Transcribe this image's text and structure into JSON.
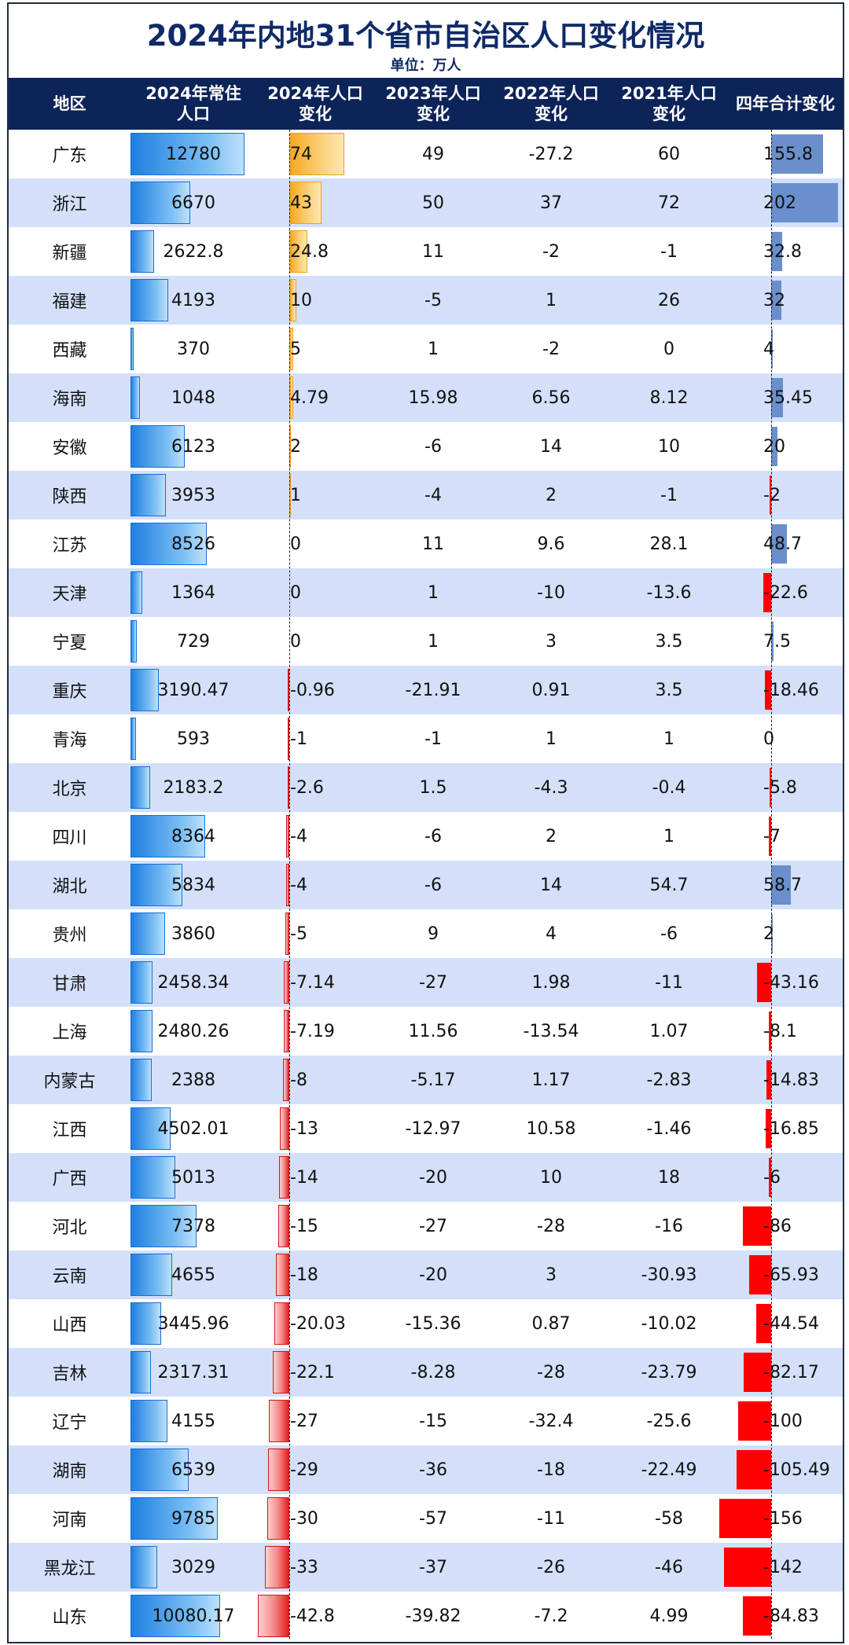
{
  "title": "2024年内地31个省市自治区人口变化情况",
  "unit": "单位：万人",
  "headers": [
    "地区",
    "2024年常住\n人口",
    "2024年人口\n变化",
    "2023年人口\n变化",
    "2022年人口\n变化",
    "2021年人口\n变化",
    "四年合计变化"
  ],
  "colors": {
    "header_bg": "#0d2459",
    "title": "#0f2a66",
    "alt_row": "#d4e0fa",
    "population_bar": "#1e7fe0",
    "positive_bar": "#f6a820",
    "negative_bar": "#e32020",
    "total_positive": "#6a8fcc",
    "total_negative": "#ff0000"
  },
  "chart_data": {
    "type": "table",
    "title": "2024年内地31个省市自治区人口变化情况",
    "columns": [
      "地区",
      "2024年常住人口",
      "2024年人口变化",
      "2023年人口变化",
      "2022年人口变化",
      "2021年人口变化",
      "四年合计变化"
    ],
    "rows": [
      [
        "广东",
        "12780",
        "74",
        "49",
        "-27.2",
        "60",
        "155.8"
      ],
      [
        "浙江",
        "6670",
        "43",
        "50",
        "37",
        "72",
        "202"
      ],
      [
        "新疆",
        "2622.8",
        "24.8",
        "11",
        "-2",
        "-1",
        "32.8"
      ],
      [
        "福建",
        "4193",
        "10",
        "-5",
        "1",
        "26",
        "32"
      ],
      [
        "西藏",
        "370",
        "5",
        "1",
        "-2",
        "0",
        "4"
      ],
      [
        "海南",
        "1048",
        "4.79",
        "15.98",
        "6.56",
        "8.12",
        "35.45"
      ],
      [
        "安徽",
        "6123",
        "2",
        "-6",
        "14",
        "10",
        "20"
      ],
      [
        "陕西",
        "3953",
        "1",
        "-4",
        "2",
        "-1",
        "-2"
      ],
      [
        "江苏",
        "8526",
        "0",
        "11",
        "9.6",
        "28.1",
        "48.7"
      ],
      [
        "天津",
        "1364",
        "0",
        "1",
        "-10",
        "-13.6",
        "-22.6"
      ],
      [
        "宁夏",
        "729",
        "0",
        "1",
        "3",
        "3.5",
        "7.5"
      ],
      [
        "重庆",
        "3190.47",
        "-0.96",
        "-21.91",
        "0.91",
        "3.5",
        "-18.46"
      ],
      [
        "青海",
        "593",
        "-1",
        "-1",
        "1",
        "1",
        "0"
      ],
      [
        "北京",
        "2183.2",
        "-2.6",
        "1.5",
        "-4.3",
        "-0.4",
        "-5.8"
      ],
      [
        "四川",
        "8364",
        "-4",
        "-6",
        "2",
        "1",
        "-7"
      ],
      [
        "湖北",
        "5834",
        "-4",
        "-6",
        "14",
        "54.7",
        "58.7"
      ],
      [
        "贵州",
        "3860",
        "-5",
        "9",
        "4",
        "-6",
        "2"
      ],
      [
        "甘肃",
        "2458.34",
        "-7.14",
        "-27",
        "1.98",
        "-11",
        "-43.16"
      ],
      [
        "上海",
        "2480.26",
        "-7.19",
        "11.56",
        "-13.54",
        "1.07",
        "-8.1"
      ],
      [
        "内蒙古",
        "2388",
        "-8",
        "-5.17",
        "1.17",
        "-2.83",
        "-14.83"
      ],
      [
        "江西",
        "4502.01",
        "-13",
        "-12.97",
        "10.58",
        "-1.46",
        "-16.85"
      ],
      [
        "广西",
        "5013",
        "-14",
        "-20",
        "10",
        "18",
        "-6"
      ],
      [
        "河北",
        "7378",
        "-15",
        "-27",
        "-28",
        "-16",
        "-86"
      ],
      [
        "云南",
        "4655",
        "-18",
        "-20",
        "3",
        "-30.93",
        "-65.93"
      ],
      [
        "山西",
        "3445.96",
        "-20.03",
        "-15.36",
        "0.87",
        "-10.02",
        "-44.54"
      ],
      [
        "吉林",
        "2317.31",
        "-22.1",
        "-8.28",
        "-28",
        "-23.79",
        "-82.17"
      ],
      [
        "辽宁",
        "4155",
        "-27",
        "-15",
        "-32.4",
        "-25.6",
        "-100"
      ],
      [
        "湖南",
        "6539",
        "-29",
        "-36",
        "-18",
        "-22.49",
        "-105.49"
      ],
      [
        "河南",
        "9785",
        "-30",
        "-57",
        "-11",
        "-58",
        "-156"
      ],
      [
        "黑龙江",
        "3029",
        "-33",
        "-37",
        "-26",
        "-46",
        "-142"
      ],
      [
        "山东",
        "10080.17",
        "-42.8",
        "-39.82",
        "-7.2",
        "4.99",
        "-84.83"
      ]
    ]
  }
}
